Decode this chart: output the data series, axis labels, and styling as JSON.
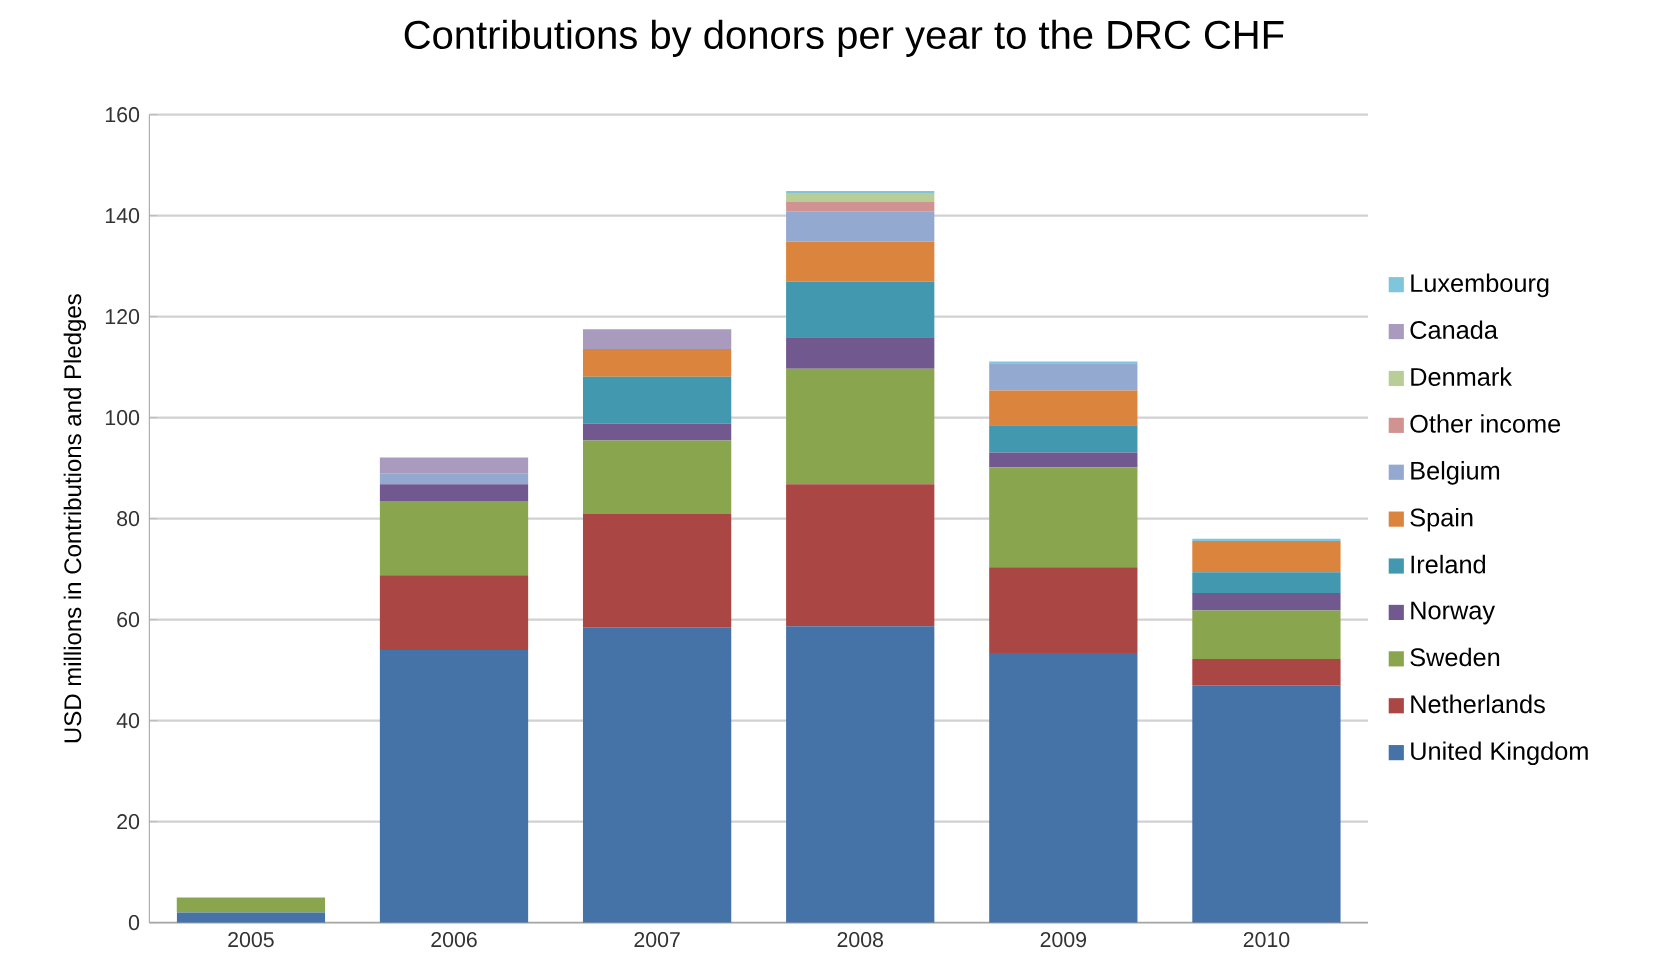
{
  "chart_data": {
    "type": "bar",
    "stacked": true,
    "title": "Contributions by donors per year to the DRC CHF",
    "ylabel": "USD millions  in Contributions and Pledges",
    "categories": [
      "2005",
      "2006",
      "2007",
      "2008",
      "2009",
      "2010"
    ],
    "ylim": [
      0,
      160
    ],
    "yticks": [
      0,
      20,
      40,
      60,
      80,
      100,
      120,
      140,
      160
    ],
    "grid": "y",
    "legend": "right",
    "series": [
      {
        "name": "United Kingdom",
        "color": "#4572a7",
        "values": [
          2,
          54,
          58.5,
          58.7,
          53.4,
          47
        ]
      },
      {
        "name": "Netherlands",
        "color": "#aa4643",
        "values": [
          null,
          14.8,
          22.4,
          28.1,
          17,
          5.2
        ]
      },
      {
        "name": "Sweden",
        "color": "#89a54e",
        "values": [
          3,
          14.7,
          14.6,
          22.9,
          19.8,
          9.6
        ]
      },
      {
        "name": "Norway",
        "color": "#71588f",
        "values": [
          null,
          3.3,
          3.3,
          6.2,
          2.9,
          3.5
        ]
      },
      {
        "name": "Ireland",
        "color": "#4198af",
        "values": [
          null,
          null,
          9.3,
          11,
          5.4,
          4.1
        ]
      },
      {
        "name": "Spain",
        "color": "#db843d",
        "values": [
          null,
          null,
          5.5,
          8,
          6.9,
          6.2
        ]
      },
      {
        "name": "Belgium",
        "color": "#93a9cf",
        "values": [
          null,
          2.1,
          null,
          5.9,
          5.4,
          null
        ]
      },
      {
        "name": "Other income",
        "color": "#d19392",
        "values": [
          null,
          null,
          null,
          1.9,
          null,
          null
        ]
      },
      {
        "name": "Denmark",
        "color": "#b9cd96",
        "values": [
          null,
          null,
          null,
          1.8,
          null,
          null
        ]
      },
      {
        "name": "Canada",
        "color": "#a99bbd",
        "values": [
          null,
          3.2,
          3.9,
          null,
          null,
          null
        ]
      },
      {
        "name": "Luxembourg",
        "color": "#7fc6dd",
        "values": [
          null,
          null,
          null,
          0.4,
          0.3,
          0.4
        ]
      }
    ]
  }
}
